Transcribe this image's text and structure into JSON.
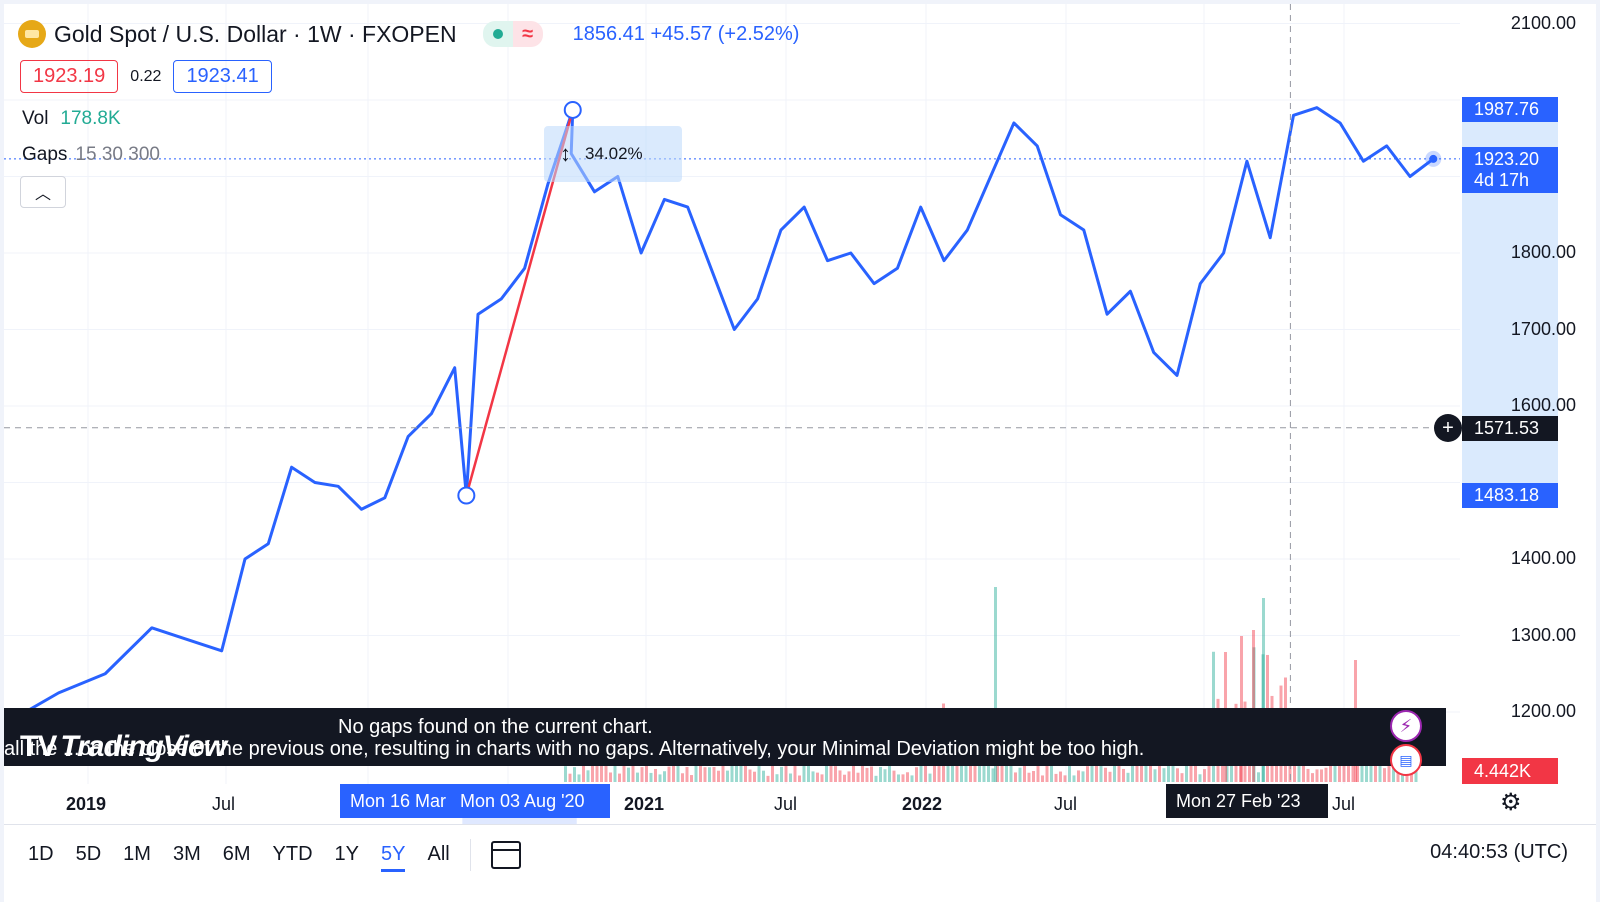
{
  "header": {
    "symbol_title": "Gold Spot / U.S. Dollar · 1W · FXOPEN",
    "ohlc_change": "1856.41  +45.57 (+2.52%)",
    "bid": "1923.19",
    "spread": "0.22",
    "ask": "1923.41",
    "volume_label": "Vol",
    "volume_value": "178.8K",
    "gaps_label": "Gaps",
    "gaps_params": "15 30 300",
    "collapse_icon": "chevron-up-icon"
  },
  "measure": {
    "label": "34.02%"
  },
  "notice": {
    "line1": "No gaps found on the current chart.",
    "line2": "all the ...on the close of the previous one, resulting in charts with no gaps. Alternatively, your Minimal Deviation might be too high."
  },
  "logo": {
    "text": "TradingView",
    "glyph": "TV"
  },
  "price_axis": {
    "ticks": [
      {
        "label": "2100.00",
        "value": 2100
      },
      {
        "label": "1800.00",
        "value": 1800
      },
      {
        "label": "1700.00",
        "value": 1700
      },
      {
        "label": "1600.00",
        "value": 1600
      },
      {
        "label": "1400.00",
        "value": 1400
      },
      {
        "label": "1300.00",
        "value": 1300
      },
      {
        "label": "1200.00",
        "value": 1200
      }
    ],
    "badges": {
      "high": "1987.76",
      "last": "1923.20",
      "countdown": "4d 17h",
      "crosshair": "1571.53",
      "low": "1483.18",
      "volume": "4.442K"
    }
  },
  "time_axis": {
    "labels": [
      {
        "text": "2019",
        "major": true
      },
      {
        "text": "Jul",
        "major": false
      },
      {
        "text": "2021",
        "major": true
      },
      {
        "text": "Jul",
        "major": false
      },
      {
        "text": "2022",
        "major": true
      },
      {
        "text": "Jul",
        "major": false
      },
      {
        "text": "Jul",
        "major": false
      }
    ],
    "pill_start": "Mon 16 Mar '20",
    "pill_end": "Mon 03 Aug '20",
    "pill_crosshair": "Mon 27 Feb '23"
  },
  "ranges": [
    "1D",
    "5D",
    "1M",
    "3M",
    "6M",
    "YTD",
    "1Y",
    "5Y",
    "All"
  ],
  "active_range": "5Y",
  "clock": "04:40:53 (UTC)",
  "colors": {
    "line": "#2962ff",
    "measure": "#f23645",
    "vol_up": "#22ab94",
    "vol_down": "#f23645",
    "background": "#ffffff"
  },
  "chart_data": {
    "type": "line",
    "title": "Gold Spot / U.S. Dollar · 1W · FXOPEN",
    "xlabel": "",
    "ylabel": "",
    "ylim": [
      1160,
      2110
    ],
    "x_range": [
      "2018-08",
      "2023-10"
    ],
    "grid": true,
    "series": [
      {
        "name": "",
        "x": [
          "2018-08",
          "2018-10",
          "2018-12",
          "2019-02",
          "2019-04",
          "2019-05",
          "2019-06",
          "2019-07",
          "2019-08",
          "2019-09",
          "2019-10",
          "2019-11",
          "2019-12",
          "2020-01",
          "2020-02",
          "2020-03",
          "2020-03-16",
          "2020-04",
          "2020-05",
          "2020-06",
          "2020-07",
          "2020-08-03",
          "2020-08",
          "2020-09",
          "2020-10",
          "2020-11",
          "2020-12",
          "2021-01",
          "2021-02",
          "2021-03",
          "2021-04",
          "2021-05",
          "2021-06",
          "2021-07",
          "2021-08",
          "2021-09",
          "2021-10",
          "2021-11",
          "2021-12",
          "2022-01",
          "2022-02",
          "2022-03",
          "2022-04",
          "2022-05",
          "2022-06",
          "2022-07",
          "2022-08",
          "2022-09",
          "2022-10",
          "2022-11",
          "2022-12",
          "2023-01",
          "2023-02",
          "2023-03",
          "2023-04",
          "2023-05",
          "2023-06",
          "2023-07",
          "2023-08",
          "2023-09"
        ],
        "values": [
          1190,
          1225,
          1250,
          1310,
          1290,
          1280,
          1400,
          1420,
          1520,
          1500,
          1495,
          1465,
          1480,
          1560,
          1590,
          1650,
          1483,
          1720,
          1740,
          1780,
          1890,
          1987,
          1930,
          1880,
          1900,
          1800,
          1870,
          1860,
          1780,
          1700,
          1740,
          1830,
          1860,
          1790,
          1800,
          1760,
          1780,
          1860,
          1790,
          1830,
          1900,
          1970,
          1940,
          1850,
          1830,
          1720,
          1750,
          1670,
          1640,
          1760,
          1800,
          1920,
          1820,
          1980,
          1990,
          1970,
          1920,
          1940,
          1900,
          1923
        ]
      }
    ]
  }
}
